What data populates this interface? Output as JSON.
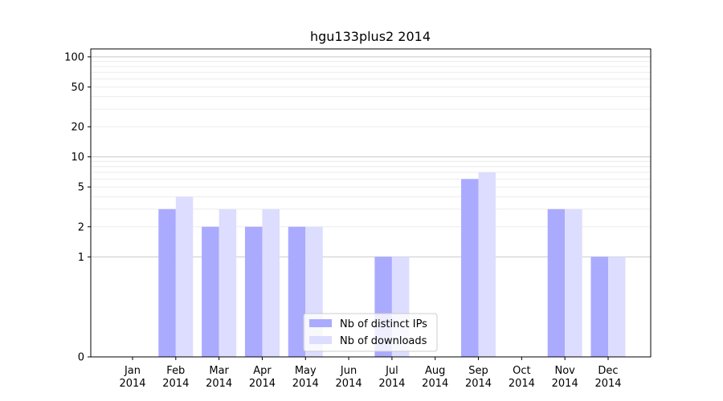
{
  "chart_data": {
    "type": "bar",
    "title": "hgu133plus2 2014",
    "xlabel": "",
    "ylabel": "",
    "categories": [
      [
        "Jan",
        "2014"
      ],
      [
        "Feb",
        "2014"
      ],
      [
        "Mar",
        "2014"
      ],
      [
        "Apr",
        "2014"
      ],
      [
        "May",
        "2014"
      ],
      [
        "Jun",
        "2014"
      ],
      [
        "Jul",
        "2014"
      ],
      [
        "Aug",
        "2014"
      ],
      [
        "Sep",
        "2014"
      ],
      [
        "Oct",
        "2014"
      ],
      [
        "Nov",
        "2014"
      ],
      [
        "Dec",
        "2014"
      ]
    ],
    "series": [
      {
        "name": "Nb of distinct IPs",
        "color": "#aaaaff",
        "values": [
          0,
          3,
          2,
          2,
          2,
          0,
          1,
          0,
          6,
          0,
          3,
          1
        ]
      },
      {
        "name": "Nb of downloads",
        "color": "#ddddff",
        "values": [
          0,
          4,
          3,
          3,
          2,
          0,
          1,
          0,
          7,
          0,
          3,
          1
        ]
      }
    ],
    "y_scale": "symlog",
    "ylim": [
      0,
      120
    ],
    "yticks": [
      0,
      1,
      2,
      5,
      10,
      20,
      50,
      100
    ],
    "ytick_labels": [
      "0",
      "1",
      "2",
      "5",
      "10",
      "20",
      "50",
      "100"
    ],
    "major_gridlines": [
      1,
      10,
      100
    ],
    "grid": true,
    "legend_position": "bottom-center"
  }
}
